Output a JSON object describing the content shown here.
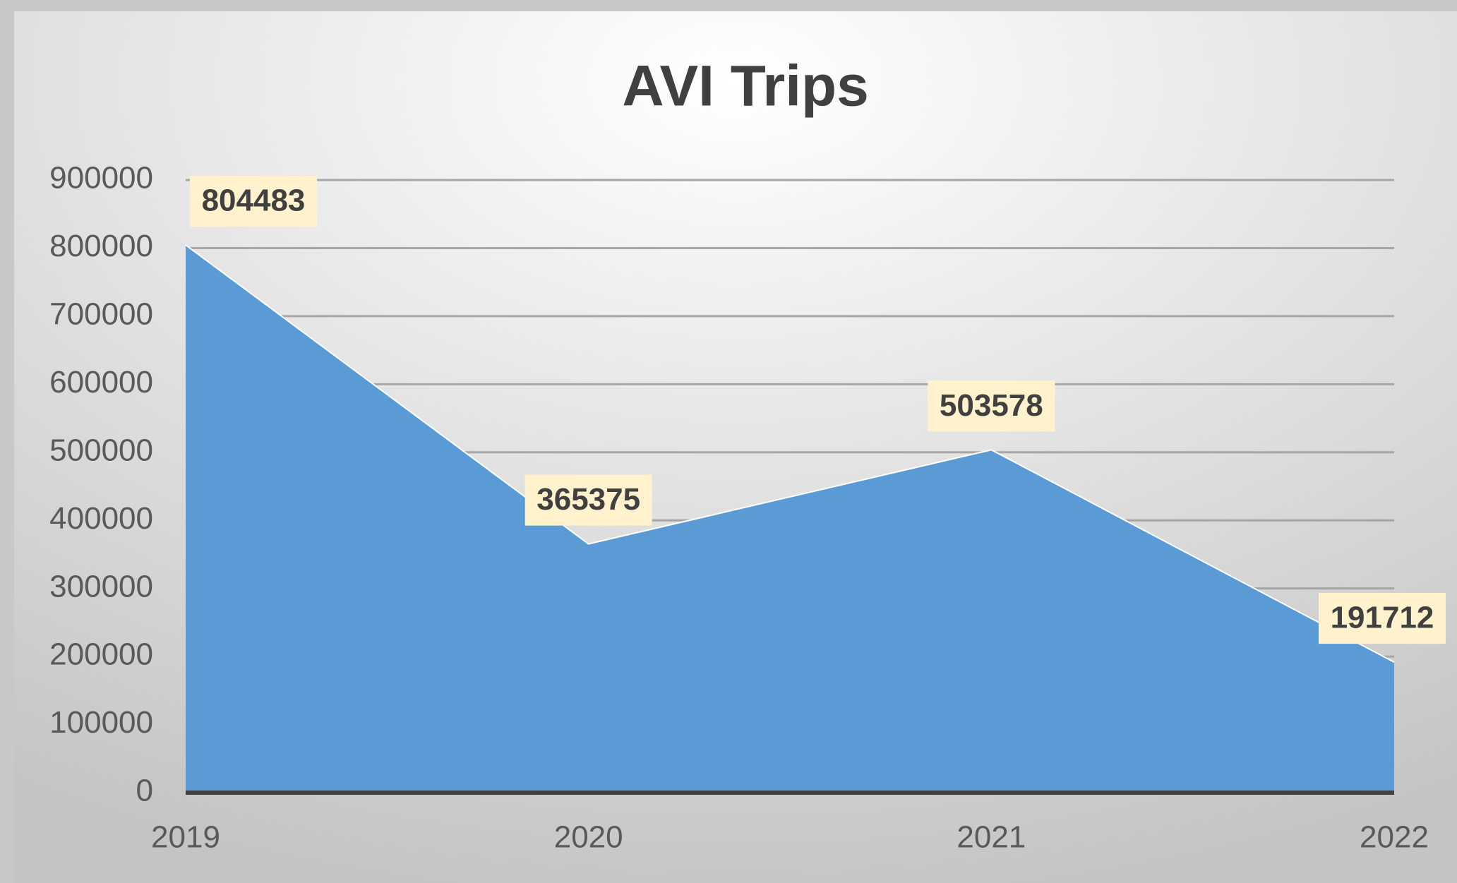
{
  "chart_data": {
    "type": "area",
    "title": "AVI Trips",
    "categories": [
      "2019",
      "2020",
      "2021",
      "2022"
    ],
    "values": [
      804483,
      365375,
      503578,
      191712
    ],
    "color": "#5b9bd5",
    "ylim": [
      0,
      900000
    ],
    "yticks": [
      0,
      100000,
      200000,
      300000,
      400000,
      500000,
      600000,
      700000,
      800000,
      900000
    ],
    "grid": true
  }
}
